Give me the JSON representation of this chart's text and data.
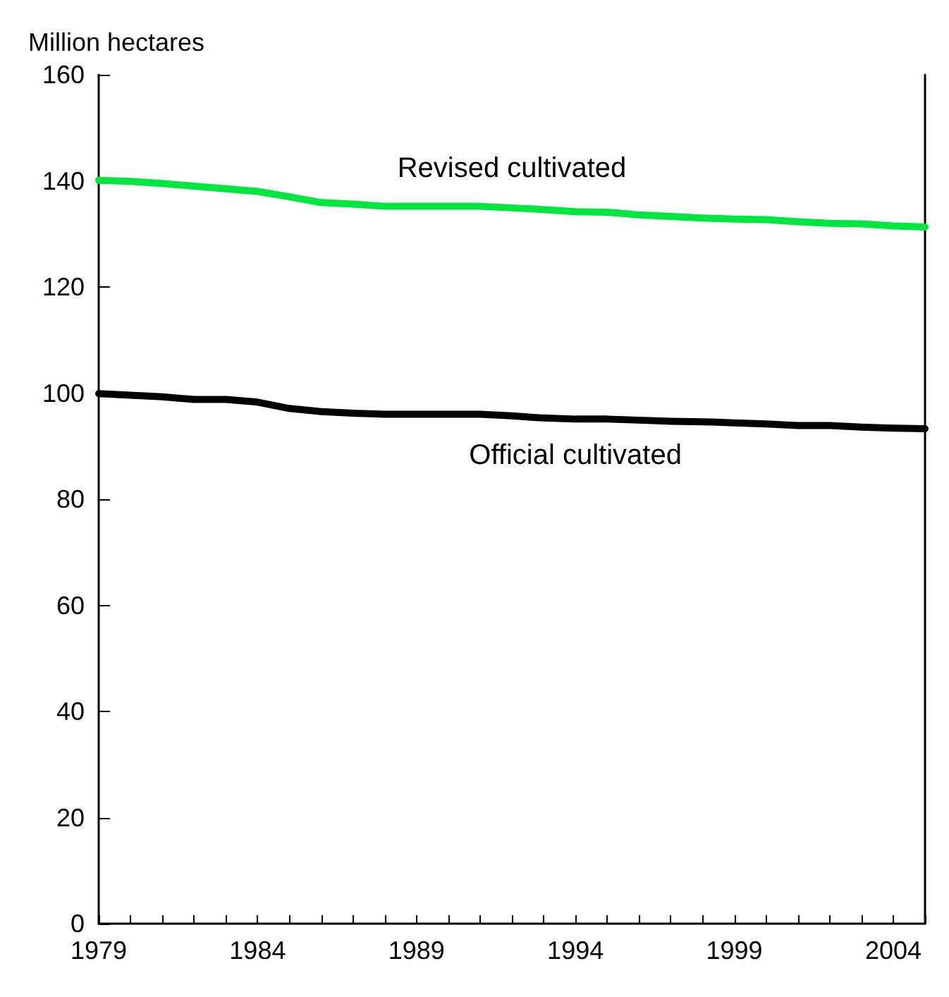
{
  "chart_data": {
    "type": "line",
    "ylabel": "Million hectares",
    "x": [
      1979,
      1980,
      1981,
      1982,
      1983,
      1984,
      1985,
      1986,
      1987,
      1988,
      1989,
      1990,
      1991,
      1992,
      1993,
      1994,
      1995,
      1996,
      1997,
      1998,
      1999,
      2000,
      2001,
      2002,
      2003,
      2004,
      2005
    ],
    "series": [
      {
        "name": "Revised cultivated",
        "color": "#00e640",
        "values": [
          140.1,
          139.9,
          139.5,
          139.0,
          138.5,
          138.0,
          137.0,
          135.9,
          135.6,
          135.2,
          135.2,
          135.2,
          135.2,
          134.9,
          134.6,
          134.2,
          134.1,
          133.6,
          133.3,
          133.0,
          132.8,
          132.7,
          132.3,
          132.0,
          131.9,
          131.5,
          131.3
        ]
      },
      {
        "name": "Official cultivated",
        "color": "#000000",
        "values": [
          99.9,
          99.6,
          99.3,
          98.8,
          98.8,
          98.3,
          97.1,
          96.5,
          96.2,
          96.0,
          96.0,
          96.0,
          96.0,
          95.7,
          95.3,
          95.1,
          95.1,
          94.9,
          94.7,
          94.6,
          94.4,
          94.2,
          93.9,
          93.9,
          93.6,
          93.4,
          93.3
        ]
      }
    ],
    "xlim": [
      1979,
      2005
    ],
    "xticks": [
      1979,
      {
        "value": 1980,
        "label": null
      },
      {
        "value": 1981,
        "label": null
      },
      {
        "value": 1982,
        "label": null
      },
      {
        "value": 1983,
        "label": null
      },
      1984,
      {
        "value": 1985,
        "label": null
      },
      {
        "value": 1986,
        "label": null
      },
      {
        "value": 1987,
        "label": null
      },
      {
        "value": 1988,
        "label": null
      },
      1989,
      {
        "value": 1990,
        "label": null
      },
      {
        "value": 1991,
        "label": null
      },
      {
        "value": 1992,
        "label": null
      },
      {
        "value": 1993,
        "label": null
      },
      1994,
      {
        "value": 1995,
        "label": null
      },
      {
        "value": 1996,
        "label": null
      },
      {
        "value": 1997,
        "label": null
      },
      {
        "value": 1998,
        "label": null
      },
      1999,
      {
        "value": 2000,
        "label": null
      },
      {
        "value": 2001,
        "label": null
      },
      {
        "value": 2002,
        "label": null
      },
      {
        "value": 2003,
        "label": null
      },
      2004,
      {
        "value": 2005,
        "label": null
      }
    ],
    "ylim": [
      0,
      160
    ],
    "yticks": [
      0,
      20,
      40,
      60,
      80,
      100,
      120,
      140,
      160
    ],
    "grid": false,
    "legend": false,
    "marker": "none",
    "line_style": "solid"
  }
}
